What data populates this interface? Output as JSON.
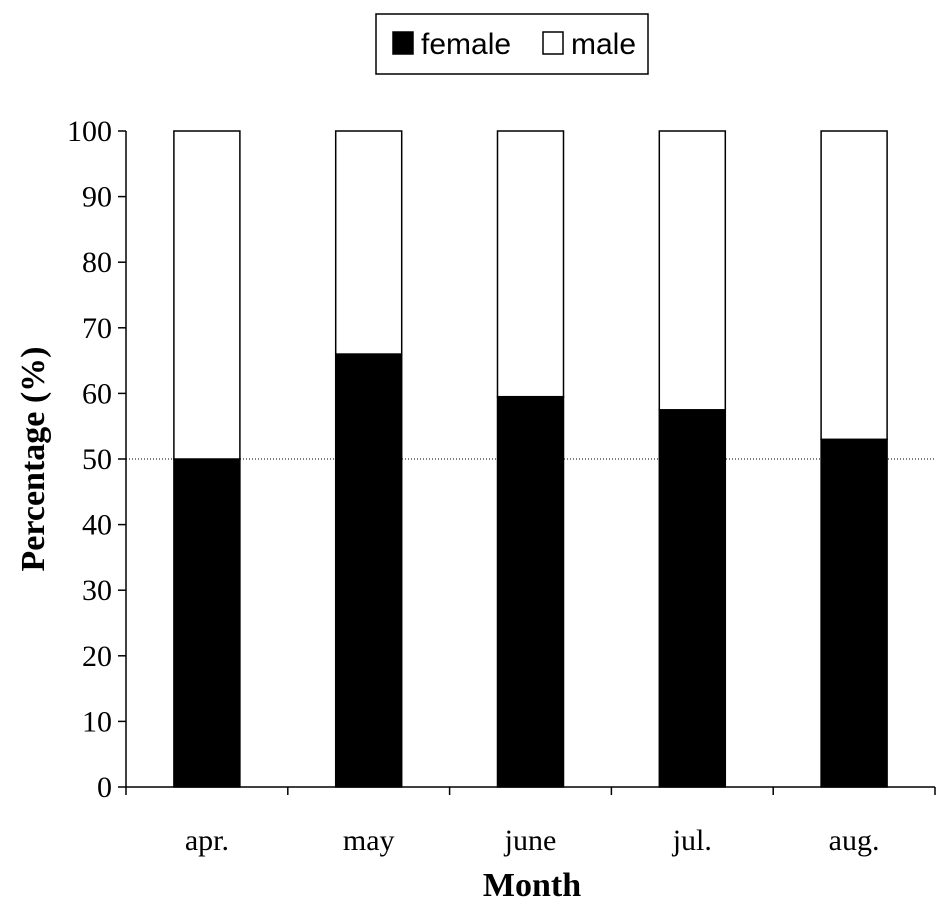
{
  "chart_data": {
    "type": "bar",
    "stacked": true,
    "categories": [
      "apr.",
      "may",
      "june",
      "jul.",
      "aug."
    ],
    "series": [
      {
        "name": "female",
        "values": [
          50,
          66,
          59.5,
          57.5,
          53
        ],
        "color": "#000000"
      },
      {
        "name": "male",
        "values": [
          50,
          34,
          40.5,
          42.5,
          47
        ],
        "color": "#ffffff"
      }
    ],
    "xlabel": "Month",
    "ylabel": "Percentage (%)",
    "ylim": [
      0,
      100
    ],
    "yticks": [
      0,
      10,
      20,
      30,
      40,
      50,
      60,
      70,
      80,
      90,
      100
    ],
    "reference_line": 50,
    "grid": false,
    "legend_position": "top-center"
  }
}
